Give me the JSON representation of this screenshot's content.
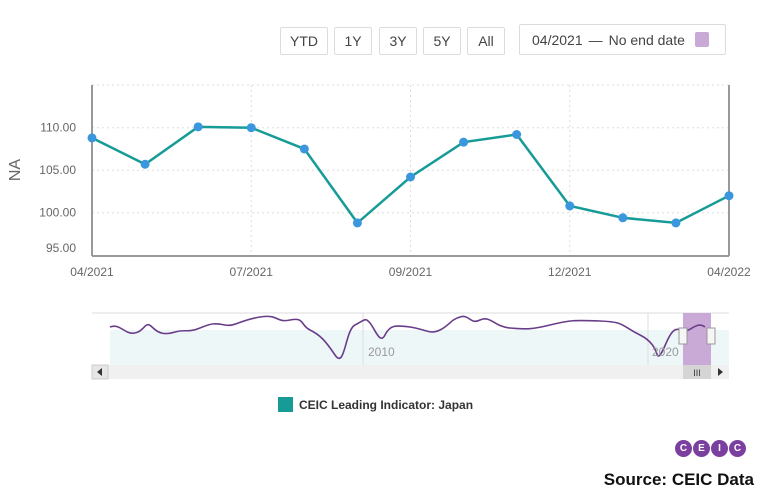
{
  "toolbar": {
    "buttons": [
      {
        "label": "YTD"
      },
      {
        "label": "1Y"
      },
      {
        "label": "3Y"
      },
      {
        "label": "5Y"
      },
      {
        "label": "All"
      }
    ],
    "date_range": {
      "start": "04/2021",
      "separator": "—",
      "end": "No end date",
      "icon": "calendar-icon"
    }
  },
  "chart_data": {
    "type": "line",
    "title": "",
    "xlabel": "",
    "ylabel": "NA",
    "ylim": [
      95,
      113
    ],
    "yticks": [
      "95.00",
      "100.00",
      "105.00",
      "110.00"
    ],
    "xticks": [
      "04/2021",
      "07/2021",
      "09/2021",
      "12/2021",
      "04/2022"
    ],
    "grid": true,
    "legend_position": "bottom",
    "x": [
      "04/2021",
      "05/2021",
      "06/2021",
      "07/2021",
      "08/2021",
      "08/2021b",
      "09/2021",
      "10/2021",
      "11/2021",
      "12/2021",
      "01/2022",
      "02/2022",
      "04/2022"
    ],
    "series": [
      {
        "name": "CEIC Leading Indicator: Japan",
        "color": "#169b97",
        "marker_color": "#3a97dd",
        "values": [
          108.8,
          105.7,
          110.1,
          110.0,
          107.5,
          98.8,
          104.2,
          108.3,
          109.2,
          100.8,
          99.4,
          98.8,
          102.0
        ]
      }
    ],
    "navigator": {
      "labels": [
        "2010",
        "2020"
      ],
      "line_color": "#6a3d8a",
      "selection_color": "#c9a9d6"
    }
  },
  "legend": {
    "label": "CEIC Leading Indicator: Japan",
    "color": "#169b97"
  },
  "footer": {
    "logo_letters": [
      "C",
      "E",
      "I",
      "C"
    ],
    "source": "Source: CEIC Data"
  }
}
